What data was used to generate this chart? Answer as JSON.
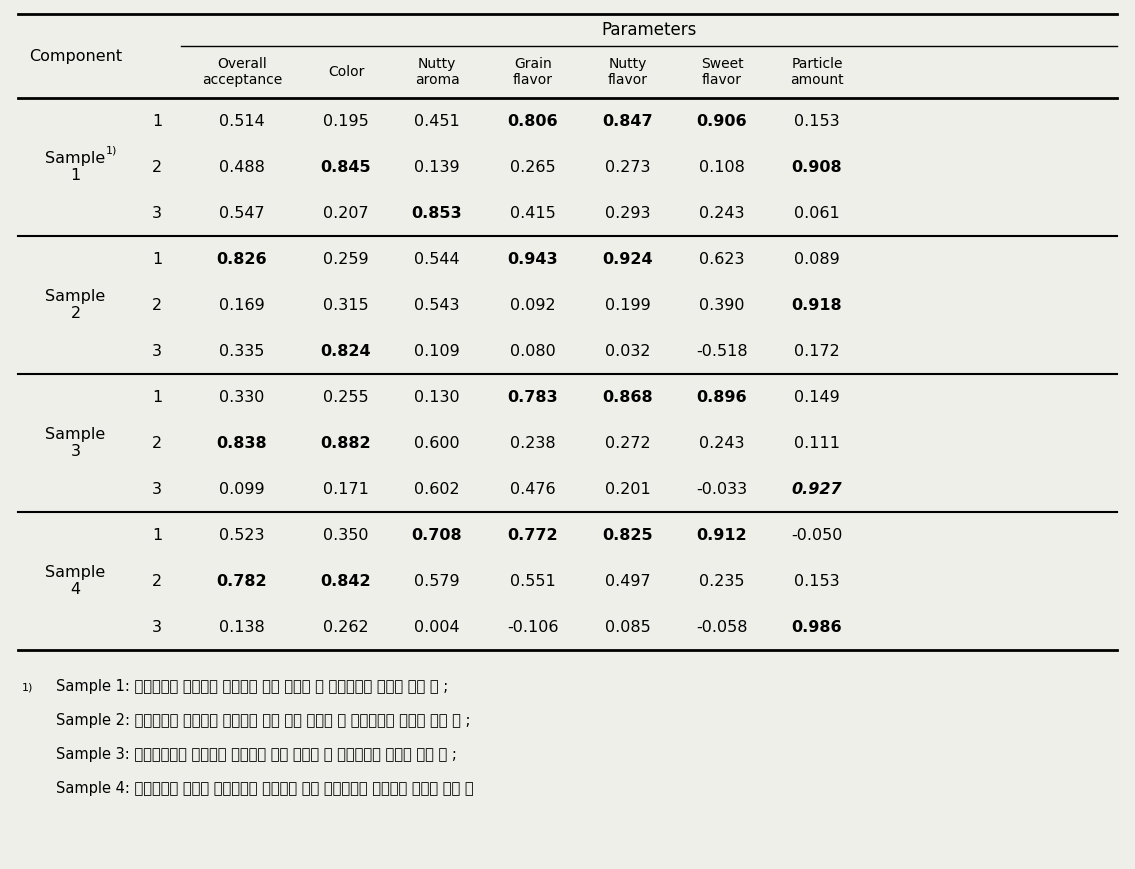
{
  "col_headers": [
    "Overall\nacceptance",
    "Color",
    "Nutty\naroma",
    "Grain\nflavor",
    "Nutty\nflavor",
    "Sweet\nflavor",
    "Particle\namount"
  ],
  "row_groups": [
    {
      "label_line1": "Sample",
      "label_sup": "1)",
      "label_line2": "1",
      "rows": [
        {
          "component": "1",
          "values": [
            "0.514",
            "0.195",
            "0.451",
            "0.806",
            "0.847",
            "0.906",
            "0.153"
          ],
          "bold": [
            false,
            false,
            false,
            true,
            true,
            true,
            false
          ],
          "italic": [
            false,
            false,
            false,
            false,
            false,
            false,
            false
          ]
        },
        {
          "component": "2",
          "values": [
            "0.488",
            "0.845",
            "0.139",
            "0.265",
            "0.273",
            "0.108",
            "0.908"
          ],
          "bold": [
            false,
            true,
            false,
            false,
            false,
            false,
            true
          ],
          "italic": [
            false,
            false,
            false,
            false,
            false,
            false,
            false
          ]
        },
        {
          "component": "3",
          "values": [
            "0.547",
            "0.207",
            "0.853",
            "0.415",
            "0.293",
            "0.243",
            "0.061"
          ],
          "bold": [
            false,
            false,
            true,
            false,
            false,
            false,
            false
          ],
          "italic": [
            false,
            false,
            false,
            false,
            false,
            false,
            false
          ]
        }
      ]
    },
    {
      "label_line1": "Sample",
      "label_sup": "",
      "label_line2": "2",
      "rows": [
        {
          "component": "1",
          "values": [
            "0.826",
            "0.259",
            "0.544",
            "0.943",
            "0.924",
            "0.623",
            "0.089"
          ],
          "bold": [
            true,
            false,
            false,
            true,
            true,
            false,
            false
          ],
          "italic": [
            false,
            false,
            false,
            false,
            false,
            false,
            false
          ]
        },
        {
          "component": "2",
          "values": [
            "0.169",
            "0.315",
            "0.543",
            "0.092",
            "0.199",
            "0.390",
            "0.918"
          ],
          "bold": [
            false,
            false,
            false,
            false,
            false,
            false,
            true
          ],
          "italic": [
            false,
            false,
            false,
            false,
            false,
            false,
            false
          ]
        },
        {
          "component": "3",
          "values": [
            "0.335",
            "0.824",
            "0.109",
            "0.080",
            "0.032",
            "-0.518",
            "0.172"
          ],
          "bold": [
            false,
            true,
            false,
            false,
            false,
            false,
            false
          ],
          "italic": [
            false,
            false,
            false,
            false,
            false,
            false,
            false
          ]
        }
      ]
    },
    {
      "label_line1": "Sample",
      "label_sup": "",
      "label_line2": "3",
      "rows": [
        {
          "component": "1",
          "values": [
            "0.330",
            "0.255",
            "0.130",
            "0.783",
            "0.868",
            "0.896",
            "0.149"
          ],
          "bold": [
            false,
            false,
            false,
            true,
            true,
            true,
            false
          ],
          "italic": [
            false,
            false,
            false,
            false,
            false,
            false,
            false
          ]
        },
        {
          "component": "2",
          "values": [
            "0.838",
            "0.882",
            "0.600",
            "0.238",
            "0.272",
            "0.243",
            "0.111"
          ],
          "bold": [
            true,
            true,
            false,
            false,
            false,
            false,
            false
          ],
          "italic": [
            false,
            false,
            false,
            false,
            false,
            false,
            false
          ]
        },
        {
          "component": "3",
          "values": [
            "0.099",
            "0.171",
            "0.602",
            "0.476",
            "0.201",
            "-0.033",
            "0.927"
          ],
          "bold": [
            false,
            false,
            false,
            false,
            false,
            false,
            true
          ],
          "italic": [
            false,
            false,
            false,
            false,
            false,
            false,
            true
          ]
        }
      ]
    },
    {
      "label_line1": "Sample",
      "label_sup": "",
      "label_line2": "4",
      "rows": [
        {
          "component": "1",
          "values": [
            "0.523",
            "0.350",
            "0.708",
            "0.772",
            "0.825",
            "0.912",
            "-0.050"
          ],
          "bold": [
            false,
            false,
            true,
            true,
            true,
            true,
            false
          ],
          "italic": [
            false,
            false,
            false,
            false,
            false,
            false,
            false
          ]
        },
        {
          "component": "2",
          "values": [
            "0.782",
            "0.842",
            "0.579",
            "0.551",
            "0.497",
            "0.235",
            "0.153"
          ],
          "bold": [
            true,
            true,
            false,
            false,
            false,
            false,
            false
          ],
          "italic": [
            false,
            false,
            false,
            false,
            false,
            false,
            false
          ]
        },
        {
          "component": "3",
          "values": [
            "0.138",
            "0.262",
            "0.004",
            "-0.106",
            "0.085",
            "-0.058",
            "0.986"
          ],
          "bold": [
            false,
            false,
            false,
            false,
            false,
            false,
            true
          ],
          "italic": [
            false,
            false,
            false,
            false,
            false,
            false,
            false
          ]
        }
      ]
    }
  ],
  "footnote_lines": [
    "1)  Sample 1: 일반분졼한 영여자에 효소처리 하여 건조한 후 곳물가루와 우유를 섭은 것 ;",
    "Sample 2: 일반분졼한 영여자에 효소처리 하지 않고 건조한 후 곳물가루와 우유를 섭은 것 ;",
    "Sample 3: 초미세분졼한 영여자에 효소처리 하여 건조한 후 곳물가루와 우유를 섭은 것 ;",
    "Sample 4: 대조군으로 영여자 건조가루를 사용하지 않고 곳물가루만 사용하여 우유를 섭은 것"
  ],
  "bg_color": "#efefea"
}
